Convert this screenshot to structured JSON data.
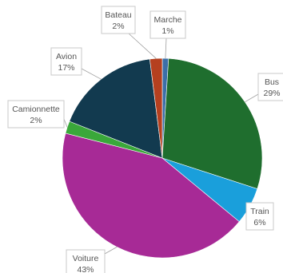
{
  "chart_data": {
    "type": "pie",
    "title": "",
    "start_angle_deg": 0,
    "direction": "clockwise",
    "slices": [
      {
        "label": "Marche",
        "value": 1,
        "percent_label": "1%",
        "color": "#3c6fa8"
      },
      {
        "label": "Bus",
        "value": 29,
        "percent_label": "29%",
        "color": "#1f6e2e"
      },
      {
        "label": "Train",
        "value": 6,
        "percent_label": "6%",
        "color": "#1a9fdb"
      },
      {
        "label": "Voiture",
        "value": 43,
        "percent_label": "43%",
        "color": "#a72a96"
      },
      {
        "label": "Camionnette",
        "value": 2,
        "percent_label": "2%",
        "color": "#3aa83a"
      },
      {
        "label": "Avion",
        "value": 17,
        "percent_label": "17%",
        "color": "#123a4f"
      },
      {
        "label": "Bateau",
        "value": 2,
        "percent_label": "2%",
        "color": "#b5401f"
      }
    ]
  }
}
